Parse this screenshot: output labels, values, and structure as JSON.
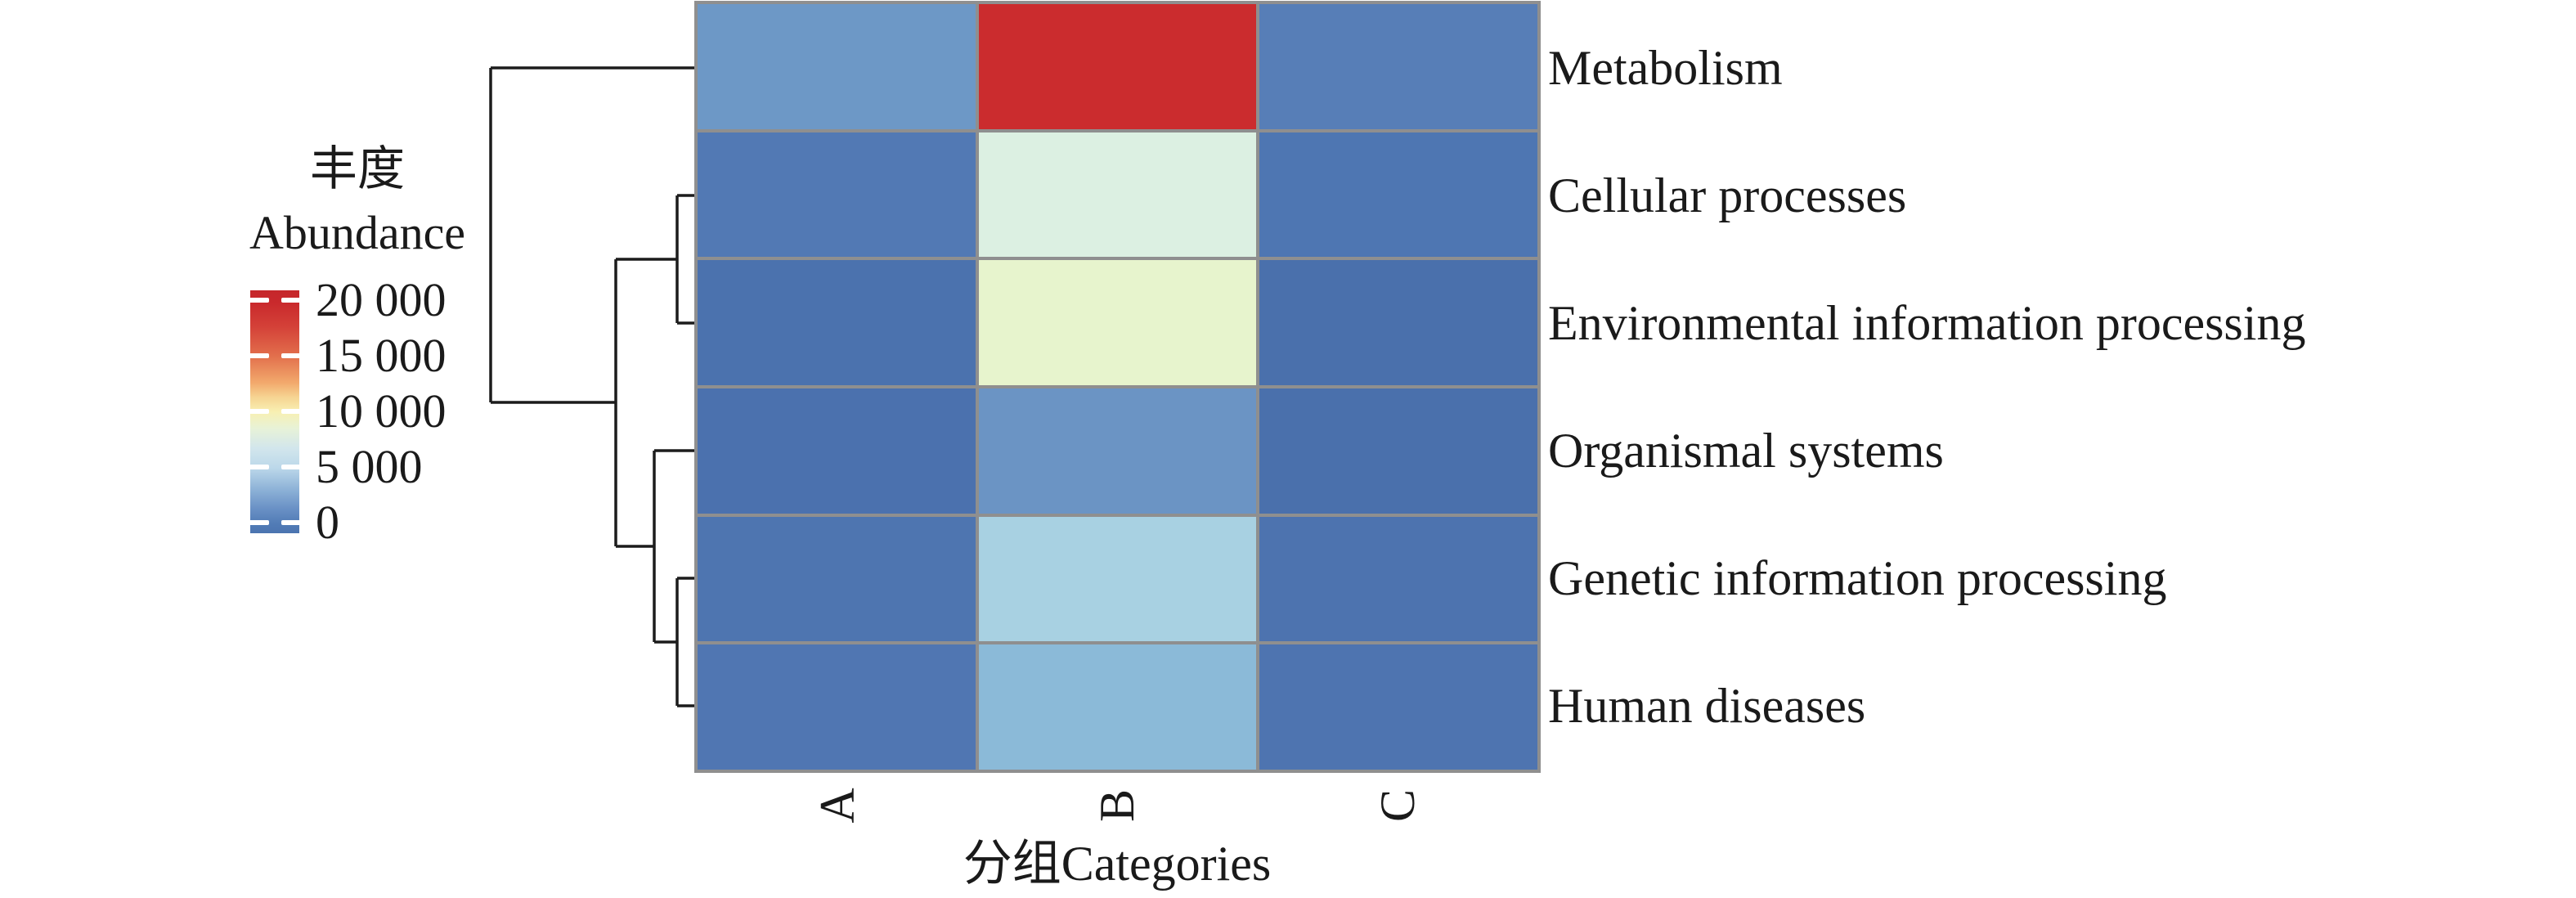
{
  "chart_data": {
    "type": "heatmap",
    "xlabel": "分组Categories",
    "categories": [
      "A",
      "B",
      "C"
    ],
    "rows": [
      "Metabolism",
      "Cellular processes",
      "Environmental information processing",
      "Organismal systems",
      "Genetic information processing",
      "Human diseases"
    ],
    "value_range": [
      0,
      20000
    ],
    "values_estimated_abundance": [
      [
        3000,
        19500,
        1800
      ],
      [
        1300,
        7200,
        1100
      ],
      [
        900,
        8800,
        800
      ],
      [
        850,
        3000,
        800
      ],
      [
        1100,
        5300,
        1000
      ],
      [
        1250,
        4400,
        1050
      ]
    ],
    "cell_colors": [
      [
        "#6d98c6",
        "#cb2c2e",
        "#577eb7"
      ],
      [
        "#5279b4",
        "#dcf0e2",
        "#4e76b2"
      ],
      [
        "#4b72ae",
        "#e7f4cd",
        "#4a70ac"
      ],
      [
        "#4b71ae",
        "#6b94c4",
        "#4a70ac"
      ],
      [
        "#4e75b0",
        "#a8d1e2",
        "#4d73af"
      ],
      [
        "#5076b2",
        "#8bbad8",
        "#4e74b0"
      ]
    ],
    "grid_color": "#8f8f8f",
    "legend": {
      "title_zh": "丰度",
      "title_en": "Abundance",
      "tick_labels": [
        "20 000",
        "15 000",
        "10 000",
        "5 000",
        "0"
      ],
      "tick_values": [
        20000,
        15000,
        10000,
        5000,
        0
      ],
      "gradient_stops": [
        {
          "pos": 0,
          "color": "#c5272b"
        },
        {
          "pos": 5,
          "color": "#c9292c"
        },
        {
          "pos": 15,
          "color": "#d44138"
        },
        {
          "pos": 27,
          "color": "#e26f4c"
        },
        {
          "pos": 38,
          "color": "#f2a96c"
        },
        {
          "pos": 44,
          "color": "#f6d492"
        },
        {
          "pos": 50,
          "color": "#f8f0b2"
        },
        {
          "pos": 57,
          "color": "#e7f2d8"
        },
        {
          "pos": 65,
          "color": "#d2e6ec"
        },
        {
          "pos": 73,
          "color": "#bcd8ea"
        },
        {
          "pos": 82,
          "color": "#8db2d7"
        },
        {
          "pos": 90,
          "color": "#6990c5"
        },
        {
          "pos": 96,
          "color": "#527cb6"
        },
        {
          "pos": 100,
          "color": "#4b74b0"
        }
      ]
    },
    "dendrogram": {
      "line_color": "#1c1c1c",
      "line_width": 3.5,
      "segments": [
        [
          600,
          83,
          853,
          83
        ],
        [
          600,
          83,
          600,
          492
        ],
        [
          600,
          492,
          753,
          492
        ],
        [
          753,
          317,
          753,
          668
        ],
        [
          753,
          317,
          828,
          317
        ],
        [
          828,
          239,
          828,
          395
        ],
        [
          828,
          239,
          853,
          239
        ],
        [
          828,
          395,
          853,
          395
        ],
        [
          753,
          668,
          800,
          668
        ],
        [
          800,
          551,
          800,
          785
        ],
        [
          800,
          551,
          853,
          551
        ],
        [
          800,
          785,
          828,
          785
        ],
        [
          828,
          707,
          828,
          863
        ],
        [
          828,
          707,
          853,
          707
        ],
        [
          828,
          863,
          853,
          863
        ]
      ]
    }
  }
}
